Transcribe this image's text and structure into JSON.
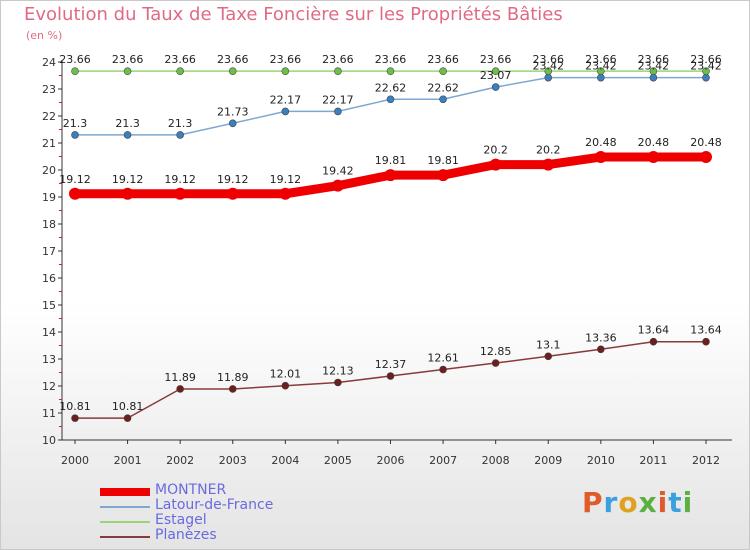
{
  "title": "Evolution du Taux de Taxe Foncière sur les Propriétés Bâties",
  "unit_label": "(en %)",
  "logo_text": "Proxiti",
  "colors": {
    "title": "#e06a86",
    "axis": "#333333",
    "legend_text": "#6a6ae0",
    "logo": [
      "#e05a2a",
      "#3aa0e0",
      "#e0a020",
      "#5ab040",
      "#e05a2a",
      "#3aa0e0",
      "#5ab040"
    ]
  },
  "chart_data": {
    "type": "line",
    "title": "Evolution du Taux de Taxe Foncière sur les Propriétés Bâties",
    "ylabel": "(en %)",
    "xlabel": "",
    "x": [
      "2000",
      "2001",
      "2002",
      "2003",
      "2004",
      "2005",
      "2006",
      "2007",
      "2008",
      "2009",
      "2010",
      "2011",
      "2012"
    ],
    "ylim": [
      10,
      24
    ],
    "yticks": [
      10,
      11,
      12,
      13,
      14,
      15,
      16,
      17,
      18,
      19,
      20,
      21,
      22,
      23,
      24
    ],
    "legend_position": "bottom-left",
    "series": [
      {
        "name": "MONTNER",
        "color": "#ee0000",
        "marker_color": "#ee0000",
        "thick": true,
        "values": [
          19.12,
          19.12,
          19.12,
          19.12,
          19.12,
          19.42,
          19.81,
          19.81,
          20.2,
          20.2,
          20.48,
          20.48,
          20.48
        ],
        "labels": [
          "19.12",
          "19.12",
          "19.12",
          "19.12",
          "19.12",
          "19.42",
          "19.81",
          "19.81",
          "20.2",
          "20.2",
          "20.48",
          "20.48",
          "20.48"
        ]
      },
      {
        "name": "Latour-de-France",
        "color": "#7fa8d0",
        "marker_color": "#3a7fbf",
        "thick": false,
        "values": [
          21.3,
          21.3,
          21.3,
          21.73,
          22.17,
          22.17,
          22.62,
          22.62,
          23.07,
          23.42,
          23.42,
          23.42,
          23.42
        ],
        "labels": [
          "21.3",
          "21.3",
          "21.3",
          "21.73",
          "22.17",
          "22.17",
          "22.62",
          "22.62",
          "23.07",
          "23.42",
          "23.42",
          "23.42",
          "23.42"
        ]
      },
      {
        "name": "Estagel",
        "color": "#9bd27a",
        "marker_color": "#6cc04a",
        "thick": false,
        "values": [
          23.66,
          23.66,
          23.66,
          23.66,
          23.66,
          23.66,
          23.66,
          23.66,
          23.66,
          23.66,
          23.66,
          23.66,
          23.66
        ],
        "labels": [
          "23.66",
          "23.66",
          "23.66",
          "23.66",
          "23.66",
          "23.66",
          "23.66",
          "23.66",
          "23.66",
          "23.66",
          "23.66",
          "23.66",
          "23.66"
        ]
      },
      {
        "name": "Planèzes",
        "color": "#8a3a3a",
        "marker_color": "#6e1e1e",
        "thick": false,
        "values": [
          10.81,
          10.81,
          11.89,
          11.89,
          12.01,
          12.13,
          12.37,
          12.61,
          12.85,
          13.1,
          13.36,
          13.64,
          13.64
        ],
        "labels": [
          "10.81",
          "10.81",
          "11.89",
          "11.89",
          "12.01",
          "12.13",
          "12.37",
          "12.61",
          "12.85",
          "13.1",
          "13.36",
          "13.64",
          "13.64"
        ]
      }
    ]
  }
}
